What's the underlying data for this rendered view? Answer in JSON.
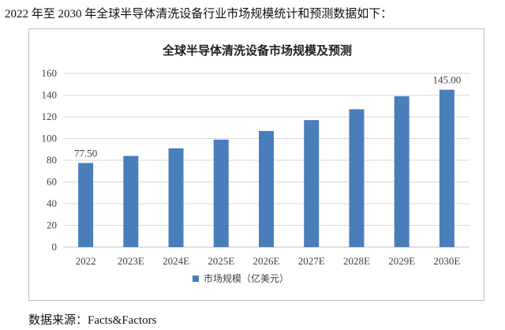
{
  "intro_text": "2022 年至 2030 年全球半导体清洗设备行业市场规模统计和预测数据如下：",
  "source_text": "数据来源：Facts&Factors",
  "chart_data": {
    "type": "bar",
    "title": "全球半导体清洗设备市场规模及预测",
    "categories": [
      "2022",
      "2023E",
      "2024E",
      "2025E",
      "2026E",
      "2027E",
      "2028E",
      "2029E",
      "2030E"
    ],
    "series": [
      {
        "name": "市场规模（亿美元）",
        "values": [
          77.5,
          84,
          91,
          99,
          107,
          117,
          127,
          139,
          145
        ],
        "color": "#4a7ebb"
      }
    ],
    "data_labels": [
      {
        "index": 0,
        "text": "77.50"
      },
      {
        "index": 8,
        "text": "145.00"
      }
    ],
    "ylim": [
      0,
      160
    ],
    "yticks": [
      0,
      20,
      40,
      60,
      80,
      100,
      120,
      140,
      160
    ],
    "grid": true,
    "legend_position": "bottom"
  }
}
